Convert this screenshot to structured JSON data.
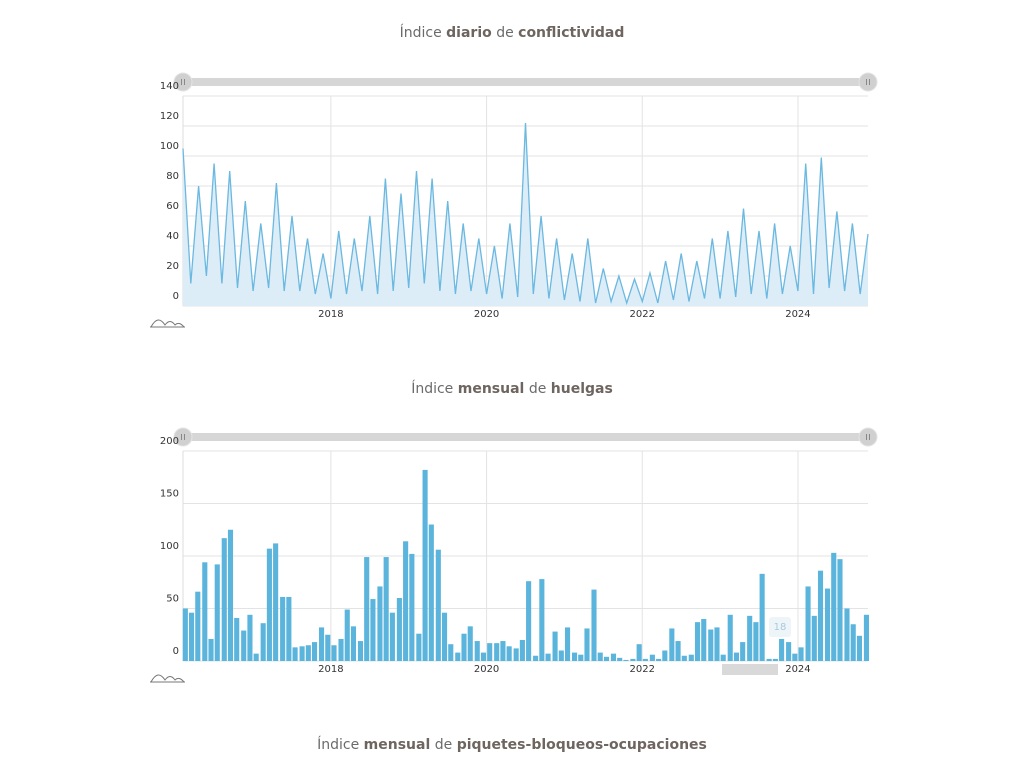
{
  "chart_data": [
    {
      "type": "line",
      "title": [
        "Índice",
        "diario",
        "de",
        "conflictividad"
      ],
      "color": "#6bb8e0",
      "fill": "#dcedf8",
      "grid": true,
      "xlim": [
        2016.1,
        2024.9
      ],
      "xticks": [
        2018,
        2020,
        2022,
        2024
      ],
      "ylim": [
        0,
        140
      ],
      "yticks": [
        0,
        20,
        40,
        60,
        80,
        100,
        120,
        140
      ],
      "x": [
        2016.1,
        2016.2,
        2016.3,
        2016.4,
        2016.5,
        2016.6,
        2016.7,
        2016.8,
        2016.9,
        2017,
        2017.1,
        2017.2,
        2017.3,
        2017.4,
        2017.5,
        2017.6,
        2017.7,
        2017.8,
        2017.9,
        2018,
        2018.1,
        2018.2,
        2018.3,
        2018.4,
        2018.5,
        2018.6,
        2018.7,
        2018.8,
        2018.9,
        2019,
        2019.1,
        2019.2,
        2019.3,
        2019.4,
        2019.5,
        2019.6,
        2019.7,
        2019.8,
        2019.9,
        2020,
        2020.1,
        2020.2,
        2020.3,
        2020.4,
        2020.5,
        2020.6,
        2020.7,
        2020.8,
        2020.9,
        2021,
        2021.1,
        2021.2,
        2021.3,
        2021.4,
        2021.5,
        2021.6,
        2021.7,
        2021.8,
        2021.9,
        2022,
        2022.1,
        2022.2,
        2022.3,
        2022.4,
        2022.5,
        2022.6,
        2022.7,
        2022.8,
        2022.9,
        2023,
        2023.1,
        2023.2,
        2023.3,
        2023.4,
        2023.5,
        2023.6,
        2023.7,
        2023.8,
        2023.9,
        2024,
        2024.1,
        2024.2,
        2024.3,
        2024.4,
        2024.5,
        2024.6,
        2024.7,
        2024.8,
        2024.9
      ],
      "values": [
        105,
        15,
        80,
        20,
        95,
        15,
        90,
        12,
        70,
        10,
        55,
        12,
        82,
        10,
        60,
        10,
        45,
        8,
        35,
        5,
        50,
        8,
        45,
        10,
        60,
        8,
        85,
        10,
        75,
        12,
        90,
        15,
        85,
        10,
        70,
        8,
        55,
        10,
        45,
        8,
        40,
        5,
        55,
        6,
        122,
        8,
        60,
        5,
        45,
        4,
        35,
        3,
        45,
        2,
        25,
        3,
        20,
        2,
        18,
        3,
        22,
        2,
        30,
        4,
        35,
        3,
        30,
        5,
        45,
        5,
        50,
        6,
        65,
        8,
        50,
        5,
        55,
        8,
        40,
        10,
        95,
        8,
        99,
        12,
        63,
        10,
        55,
        8,
        48
      ]
    },
    {
      "type": "bar",
      "title": [
        "Índice",
        "mensual",
        "de",
        "huelgas"
      ],
      "color": "#5ab4dc",
      "grid": true,
      "xlim": [
        2016.1,
        2024.9
      ],
      "xticks": [
        2018,
        2020,
        2022,
        2024
      ],
      "ylim": [
        0,
        200
      ],
      "yticks": [
        0,
        50,
        100,
        150,
        200
      ],
      "annotation": "18",
      "x": [
        2016.13,
        2016.21,
        2016.29,
        2016.38,
        2016.46,
        2016.54,
        2016.63,
        2016.71,
        2016.79,
        2016.88,
        2016.96,
        2017.04,
        2017.13,
        2017.21,
        2017.29,
        2017.38,
        2017.46,
        2017.54,
        2017.63,
        2017.71,
        2017.79,
        2017.88,
        2017.96,
        2018.04,
        2018.13,
        2018.21,
        2018.29,
        2018.38,
        2018.46,
        2018.54,
        2018.63,
        2018.71,
        2018.79,
        2018.88,
        2018.96,
        2019.04,
        2019.13,
        2019.21,
        2019.29,
        2019.38,
        2019.46,
        2019.54,
        2019.63,
        2019.71,
        2019.79,
        2019.88,
        2019.96,
        2020.04,
        2020.13,
        2020.21,
        2020.29,
        2020.38,
        2020.46,
        2020.54,
        2020.63,
        2020.71,
        2020.79,
        2020.88,
        2020.96,
        2021.04,
        2021.13,
        2021.21,
        2021.29,
        2021.38,
        2021.46,
        2021.54,
        2021.63,
        2021.71,
        2021.79,
        2021.88,
        2021.96,
        2022.04,
        2022.13,
        2022.21,
        2022.29,
        2022.38,
        2022.46,
        2022.54,
        2022.63,
        2022.71,
        2022.79,
        2022.88,
        2022.96,
        2023.04,
        2023.13,
        2023.21,
        2023.29,
        2023.38,
        2023.46,
        2023.54,
        2023.63,
        2023.71,
        2023.79,
        2023.88,
        2023.96,
        2024.04,
        2024.13,
        2024.21,
        2024.29,
        2024.38,
        2024.46,
        2024.54,
        2024.63,
        2024.71,
        2024.79,
        2024.88
      ],
      "values": [
        50,
        46,
        66,
        94,
        21,
        92,
        117,
        125,
        41,
        29,
        44,
        7,
        36,
        107,
        112,
        61,
        61,
        13,
        14,
        15,
        18,
        32,
        25,
        15,
        21,
        49,
        33,
        19,
        99,
        59,
        71,
        99,
        46,
        60,
        114,
        102,
        26,
        182,
        130,
        106,
        46,
        16,
        8,
        26,
        33,
        19,
        8,
        17,
        17,
        19,
        14,
        12,
        20,
        76,
        5,
        78,
        7,
        28,
        10,
        32,
        8,
        6,
        31,
        68,
        8,
        4,
        7,
        3,
        1,
        2,
        16,
        2,
        6,
        2,
        10,
        31,
        19,
        5,
        6,
        37,
        40,
        30,
        32,
        6,
        44,
        8,
        18,
        43,
        37,
        83,
        2,
        2,
        21,
        18,
        7,
        13,
        71,
        43,
        86,
        69,
        103,
        97,
        50,
        35,
        24,
        44
      ]
    },
    {
      "type": "bar",
      "title": [
        "Índice",
        "mensual",
        "de",
        "piquetes-bloqueos-ocupaciones"
      ]
    }
  ]
}
